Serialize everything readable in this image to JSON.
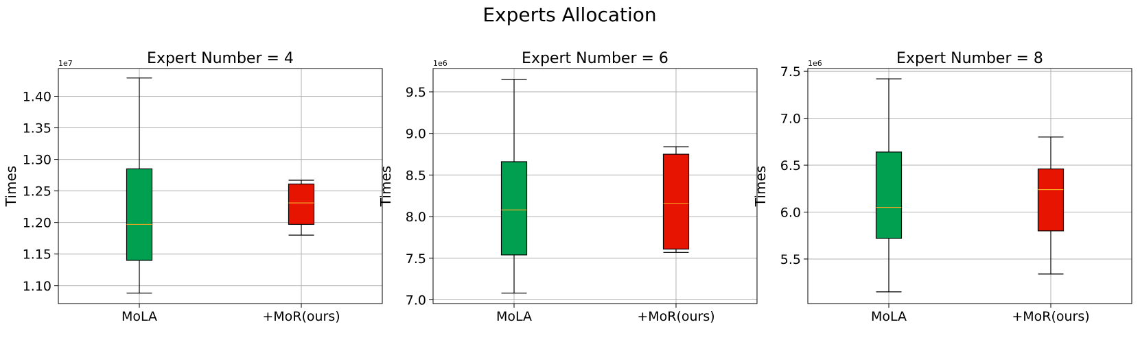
{
  "figure": {
    "title": "Experts Allocation"
  },
  "styles": {
    "mola_color": "#00A050",
    "mor_color": "#E61400",
    "median_color": "#F5A623",
    "grid_color": "#b0b0b0"
  },
  "chart_data": [
    {
      "type": "box",
      "title": "Expert Number = 4",
      "ylabel": "Times",
      "offset_label": "1e7",
      "ylim": [
        1.0715,
        1.444
      ],
      "yticks": [
        1.1,
        1.15,
        1.2,
        1.25,
        1.3,
        1.35,
        1.4
      ],
      "ytick_labels": [
        "1.10",
        "1.15",
        "1.20",
        "1.25",
        "1.30",
        "1.35",
        "1.40"
      ],
      "categories": [
        "MoLA",
        "+MoR(ours)"
      ],
      "boxes": [
        {
          "name": "MoLA",
          "whisker_low": 1.088,
          "q1": 1.14,
          "median": 1.197,
          "q3": 1.285,
          "whisker_high": 1.429
        },
        {
          "name": "+MoR(ours)",
          "whisker_low": 1.18,
          "q1": 1.197,
          "median": 1.231,
          "q3": 1.261,
          "whisker_high": 1.267
        }
      ],
      "grid": true
    },
    {
      "type": "box",
      "title": "Expert Number = 6",
      "ylabel": "Times",
      "offset_label": "1e6",
      "ylim": [
        6.955,
        9.78
      ],
      "yticks": [
        7.0,
        7.5,
        8.0,
        8.5,
        9.0,
        9.5
      ],
      "ytick_labels": [
        "7.0",
        "7.5",
        "8.0",
        "8.5",
        "9.0",
        "9.5"
      ],
      "categories": [
        "MoLA",
        "+MoR(ours)"
      ],
      "boxes": [
        {
          "name": "MoLA",
          "whisker_low": 7.08,
          "q1": 7.54,
          "median": 8.08,
          "q3": 8.66,
          "whisker_high": 9.65
        },
        {
          "name": "+MoR(ours)",
          "whisker_low": 7.57,
          "q1": 7.61,
          "median": 8.16,
          "q3": 8.75,
          "whisker_high": 8.84
        }
      ],
      "grid": true
    },
    {
      "type": "box",
      "title": "Expert Number = 8",
      "ylabel": "Times",
      "offset_label": "1e6",
      "ylim": [
        5.025,
        7.53
      ],
      "yticks": [
        5.5,
        6.0,
        6.5,
        7.0,
        7.5
      ],
      "ytick_labels": [
        "5.5",
        "6.0",
        "6.5",
        "7.0",
        "7.5"
      ],
      "categories": [
        "MoLA",
        "+MoR(ours)"
      ],
      "boxes": [
        {
          "name": "MoLA",
          "whisker_low": 5.15,
          "q1": 5.72,
          "median": 6.05,
          "q3": 6.64,
          "whisker_high": 7.42
        },
        {
          "name": "+MoR(ours)",
          "whisker_low": 5.34,
          "q1": 5.8,
          "median": 6.24,
          "q3": 6.46,
          "whisker_high": 6.8
        }
      ],
      "grid": true
    }
  ]
}
